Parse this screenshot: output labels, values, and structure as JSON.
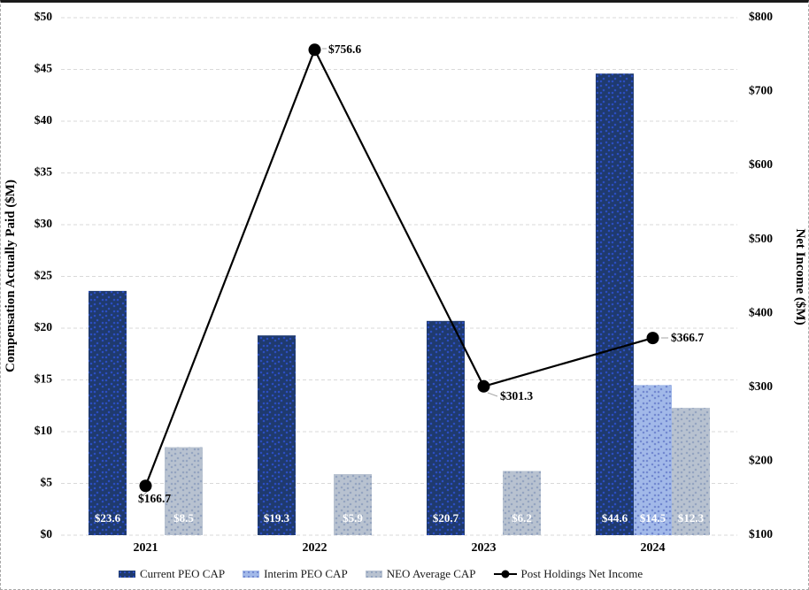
{
  "figure": {
    "background": "#FFFFFF",
    "border_top_color": "#1A1A1A",
    "border_dash_color": "#A9A9A9"
  },
  "chart_data": {
    "type": "bar+line combo",
    "title": "",
    "categories": [
      "2021",
      "2022",
      "2023",
      "2024"
    ],
    "series": [
      {
        "name": "Current PEO CAP",
        "type": "bar",
        "axis": "left",
        "color": "#1F3A6E",
        "dot_color": "#2B4EC2",
        "values": [
          23.6,
          19.3,
          20.7,
          44.6
        ],
        "labels": [
          "$23.6",
          "$19.3",
          "$20.7",
          "$44.6"
        ]
      },
      {
        "name": "Interim PEO CAP",
        "type": "bar",
        "axis": "left",
        "color": "#A2B9E9",
        "dot_color": "#7288D0",
        "values": [
          null,
          null,
          null,
          14.5
        ],
        "labels": [
          null,
          null,
          null,
          "$14.5"
        ]
      },
      {
        "name": "NEO Average CAP",
        "type": "bar",
        "axis": "left",
        "color": "#B8C2D0",
        "dot_color": "#94A4C0",
        "values": [
          8.5,
          5.9,
          6.2,
          12.3
        ],
        "labels": [
          "$8.5",
          "$5.9",
          "$6.2",
          "$12.3"
        ]
      },
      {
        "name": "Post Holdings Net Income",
        "type": "line",
        "axis": "right",
        "color": "#000000",
        "marker": "filled-circle",
        "values": [
          166.7,
          756.6,
          301.3,
          366.7
        ],
        "labels": [
          "$166.7",
          "$756.6",
          "$301.3",
          "$366.7"
        ]
      }
    ],
    "left_axis": {
      "title": "Compensation Actually Paid ($M)",
      "min": 0,
      "max": 50,
      "step": 5,
      "ticks": [
        "$0",
        "$5",
        "$10",
        "$15",
        "$20",
        "$25",
        "$30",
        "$35",
        "$40",
        "$45",
        "$50"
      ]
    },
    "right_axis": {
      "title": "Net Income ($M)",
      "min": 100,
      "max": 800,
      "step": 100,
      "ticks": [
        "$100",
        "$200",
        "$300",
        "$400",
        "$500",
        "$600",
        "$700",
        "$800"
      ]
    },
    "grid": "horizontal dashed gray",
    "gridline_color": "#D9D9D9",
    "leader_line_color": "#A6A6A6",
    "bar_label_color": "#FFFFFF",
    "legend_position": "bottom"
  }
}
